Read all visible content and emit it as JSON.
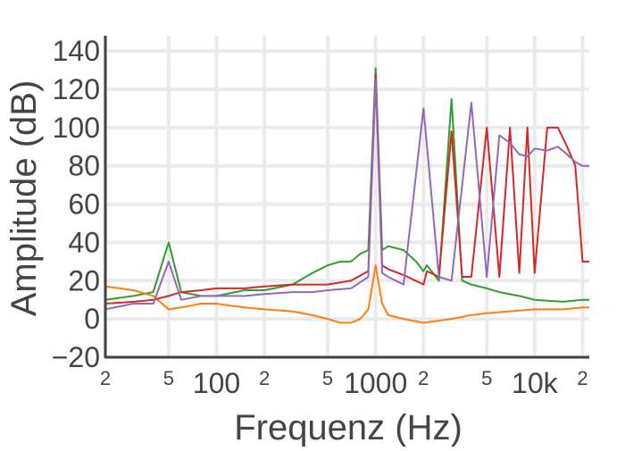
{
  "chart_data": {
    "type": "line",
    "xlabel": "Frequenz (Hz)",
    "ylabel": "Amplitude (dB)",
    "x_scale": "log",
    "xlim": [
      20,
      22050
    ],
    "ylim": [
      -20,
      148
    ],
    "grid": true,
    "legend": "none",
    "x_ticks_major": [
      {
        "value": 100,
        "label": "100"
      },
      {
        "value": 1000,
        "label": "1000"
      },
      {
        "value": 10000,
        "label": "10k"
      }
    ],
    "x_ticks_minor": [
      {
        "value": 20,
        "label": "2"
      },
      {
        "value": 50,
        "label": "5"
      },
      {
        "value": 200,
        "label": "2"
      },
      {
        "value": 500,
        "label": "5"
      },
      {
        "value": 2000,
        "label": "2"
      },
      {
        "value": 5000,
        "label": "5"
      },
      {
        "value": 20000,
        "label": "2"
      }
    ],
    "y_ticks": [
      {
        "value": -20,
        "label": "−20"
      },
      {
        "value": 0,
        "label": "0"
      },
      {
        "value": 20,
        "label": "20"
      },
      {
        "value": 40,
        "label": "40"
      },
      {
        "value": 60,
        "label": "60"
      },
      {
        "value": 80,
        "label": "80"
      },
      {
        "value": 100,
        "label": "100"
      },
      {
        "value": 120,
        "label": "120"
      },
      {
        "value": 140,
        "label": "140"
      }
    ],
    "series": [
      {
        "color": "#2ca02c",
        "values": [
          [
            20,
            10
          ],
          [
            30,
            12
          ],
          [
            40,
            14
          ],
          [
            50,
            40
          ],
          [
            60,
            14
          ],
          [
            80,
            12
          ],
          [
            100,
            12
          ],
          [
            150,
            15
          ],
          [
            200,
            15
          ],
          [
            300,
            18
          ],
          [
            400,
            24
          ],
          [
            500,
            28
          ],
          [
            600,
            30
          ],
          [
            700,
            30
          ],
          [
            800,
            34
          ],
          [
            900,
            36
          ],
          [
            1000,
            131
          ],
          [
            1100,
            36
          ],
          [
            1200,
            38
          ],
          [
            1500,
            36
          ],
          [
            1800,
            30
          ],
          [
            2000,
            25
          ],
          [
            2100,
            28
          ],
          [
            2500,
            20
          ],
          [
            3000,
            115
          ],
          [
            3500,
            20
          ],
          [
            4000,
            18
          ],
          [
            5000,
            16
          ],
          [
            6000,
            14
          ],
          [
            8000,
            12
          ],
          [
            10000,
            10
          ],
          [
            15000,
            9
          ],
          [
            20000,
            10
          ],
          [
            22050,
            10
          ]
        ]
      },
      {
        "color": "#ff7f0e",
        "values": [
          [
            20,
            17
          ],
          [
            30,
            15
          ],
          [
            40,
            12
          ],
          [
            50,
            5
          ],
          [
            60,
            6
          ],
          [
            80,
            8
          ],
          [
            100,
            8
          ],
          [
            150,
            6
          ],
          [
            200,
            5
          ],
          [
            300,
            4
          ],
          [
            400,
            2
          ],
          [
            500,
            0
          ],
          [
            600,
            -2
          ],
          [
            700,
            -2
          ],
          [
            800,
            0
          ],
          [
            900,
            5
          ],
          [
            1000,
            28
          ],
          [
            1100,
            8
          ],
          [
            1200,
            2
          ],
          [
            1500,
            0
          ],
          [
            2000,
            -2
          ],
          [
            3000,
            0
          ],
          [
            4000,
            2
          ],
          [
            5000,
            3
          ],
          [
            7000,
            4
          ],
          [
            10000,
            5
          ],
          [
            15000,
            5
          ],
          [
            20000,
            6
          ],
          [
            22050,
            6
          ]
        ]
      },
      {
        "color": "#d62728",
        "values": [
          [
            20,
            8
          ],
          [
            30,
            9
          ],
          [
            40,
            10
          ],
          [
            50,
            12
          ],
          [
            60,
            14
          ],
          [
            80,
            15
          ],
          [
            100,
            16
          ],
          [
            150,
            16
          ],
          [
            200,
            17
          ],
          [
            300,
            18
          ],
          [
            400,
            18
          ],
          [
            500,
            18
          ],
          [
            700,
            20
          ],
          [
            900,
            25
          ],
          [
            1000,
            128
          ],
          [
            1100,
            28
          ],
          [
            1200,
            26
          ],
          [
            1500,
            23
          ],
          [
            2000,
            18
          ],
          [
            2100,
            25
          ],
          [
            2500,
            22
          ],
          [
            3000,
            98
          ],
          [
            3500,
            22
          ],
          [
            4000,
            22
          ],
          [
            5000,
            100
          ],
          [
            6000,
            22
          ],
          [
            7000,
            100
          ],
          [
            8000,
            24
          ],
          [
            9000,
            100
          ],
          [
            10000,
            24
          ],
          [
            12000,
            100
          ],
          [
            14000,
            100
          ],
          [
            16000,
            90
          ],
          [
            18000,
            80
          ],
          [
            20000,
            30
          ],
          [
            22050,
            30
          ]
        ]
      },
      {
        "color": "#9467bd",
        "values": [
          [
            20,
            5
          ],
          [
            30,
            8
          ],
          [
            40,
            8
          ],
          [
            50,
            30
          ],
          [
            60,
            10
          ],
          [
            80,
            12
          ],
          [
            100,
            12
          ],
          [
            150,
            12
          ],
          [
            200,
            13
          ],
          [
            300,
            14
          ],
          [
            400,
            14
          ],
          [
            500,
            15
          ],
          [
            700,
            16
          ],
          [
            900,
            22
          ],
          [
            1000,
            125
          ],
          [
            1100,
            24
          ],
          [
            1200,
            22
          ],
          [
            1500,
            18
          ],
          [
            2000,
            110
          ],
          [
            2500,
            22
          ],
          [
            3000,
            20
          ],
          [
            4000,
            113
          ],
          [
            5000,
            22
          ],
          [
            6000,
            96
          ],
          [
            7000,
            92
          ],
          [
            8000,
            86
          ],
          [
            9000,
            85
          ],
          [
            10000,
            89
          ],
          [
            12000,
            88
          ],
          [
            14000,
            90
          ],
          [
            16000,
            86
          ],
          [
            18000,
            82
          ],
          [
            20000,
            80
          ],
          [
            22050,
            80
          ]
        ]
      }
    ]
  }
}
